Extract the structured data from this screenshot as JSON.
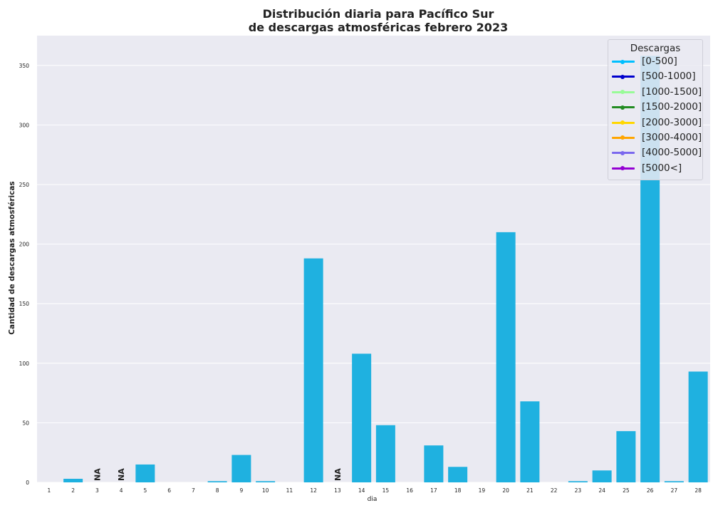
{
  "chart_data": {
    "type": "bar",
    "title": "Distribución diaria para Pacífico Sur\nde descargas atmosféricas febrero 2023",
    "title_line1": "Distribución diaria para Pacífico Sur",
    "title_line2": "de descargas atmosféricas febrero 2023",
    "xlabel": "dia",
    "ylabel": "Cantidad de descargas atmosféricas",
    "categories": [
      "1",
      "2",
      "3",
      "4",
      "5",
      "6",
      "7",
      "8",
      "9",
      "10",
      "11",
      "12",
      "13",
      "14",
      "15",
      "16",
      "17",
      "18",
      "19",
      "20",
      "21",
      "22",
      "23",
      "24",
      "25",
      "26",
      "27",
      "28"
    ],
    "values": [
      0,
      3,
      null,
      null,
      15,
      0,
      0,
      1,
      23,
      1,
      0,
      188,
      null,
      108,
      48,
      0,
      31,
      13,
      0,
      210,
      68,
      0,
      1,
      10,
      43,
      358,
      1,
      93
    ],
    "na_label": "NA",
    "bar_color": "#1fb1e0",
    "ylim": [
      0,
      375
    ],
    "yticks": [
      0,
      50,
      100,
      150,
      200,
      250,
      300,
      350
    ],
    "grid": true,
    "legend": {
      "title": "Descargas",
      "placement": "top-right",
      "entries": [
        {
          "label": "[0-500]",
          "color": "#00bfff"
        },
        {
          "label": "[500-1000]",
          "color": "#0000cd"
        },
        {
          "label": "[1000-1500]",
          "color": "#98fb98"
        },
        {
          "label": "[1500-2000]",
          "color": "#228b22"
        },
        {
          "label": "[2000-3000]",
          "color": "#ffd700"
        },
        {
          "label": "[3000-4000]",
          "color": "#ffa500"
        },
        {
          "label": "[4000-5000]",
          "color": "#7b68ee"
        },
        {
          "label": "[5000<]",
          "color": "#9400d3"
        }
      ]
    }
  }
}
